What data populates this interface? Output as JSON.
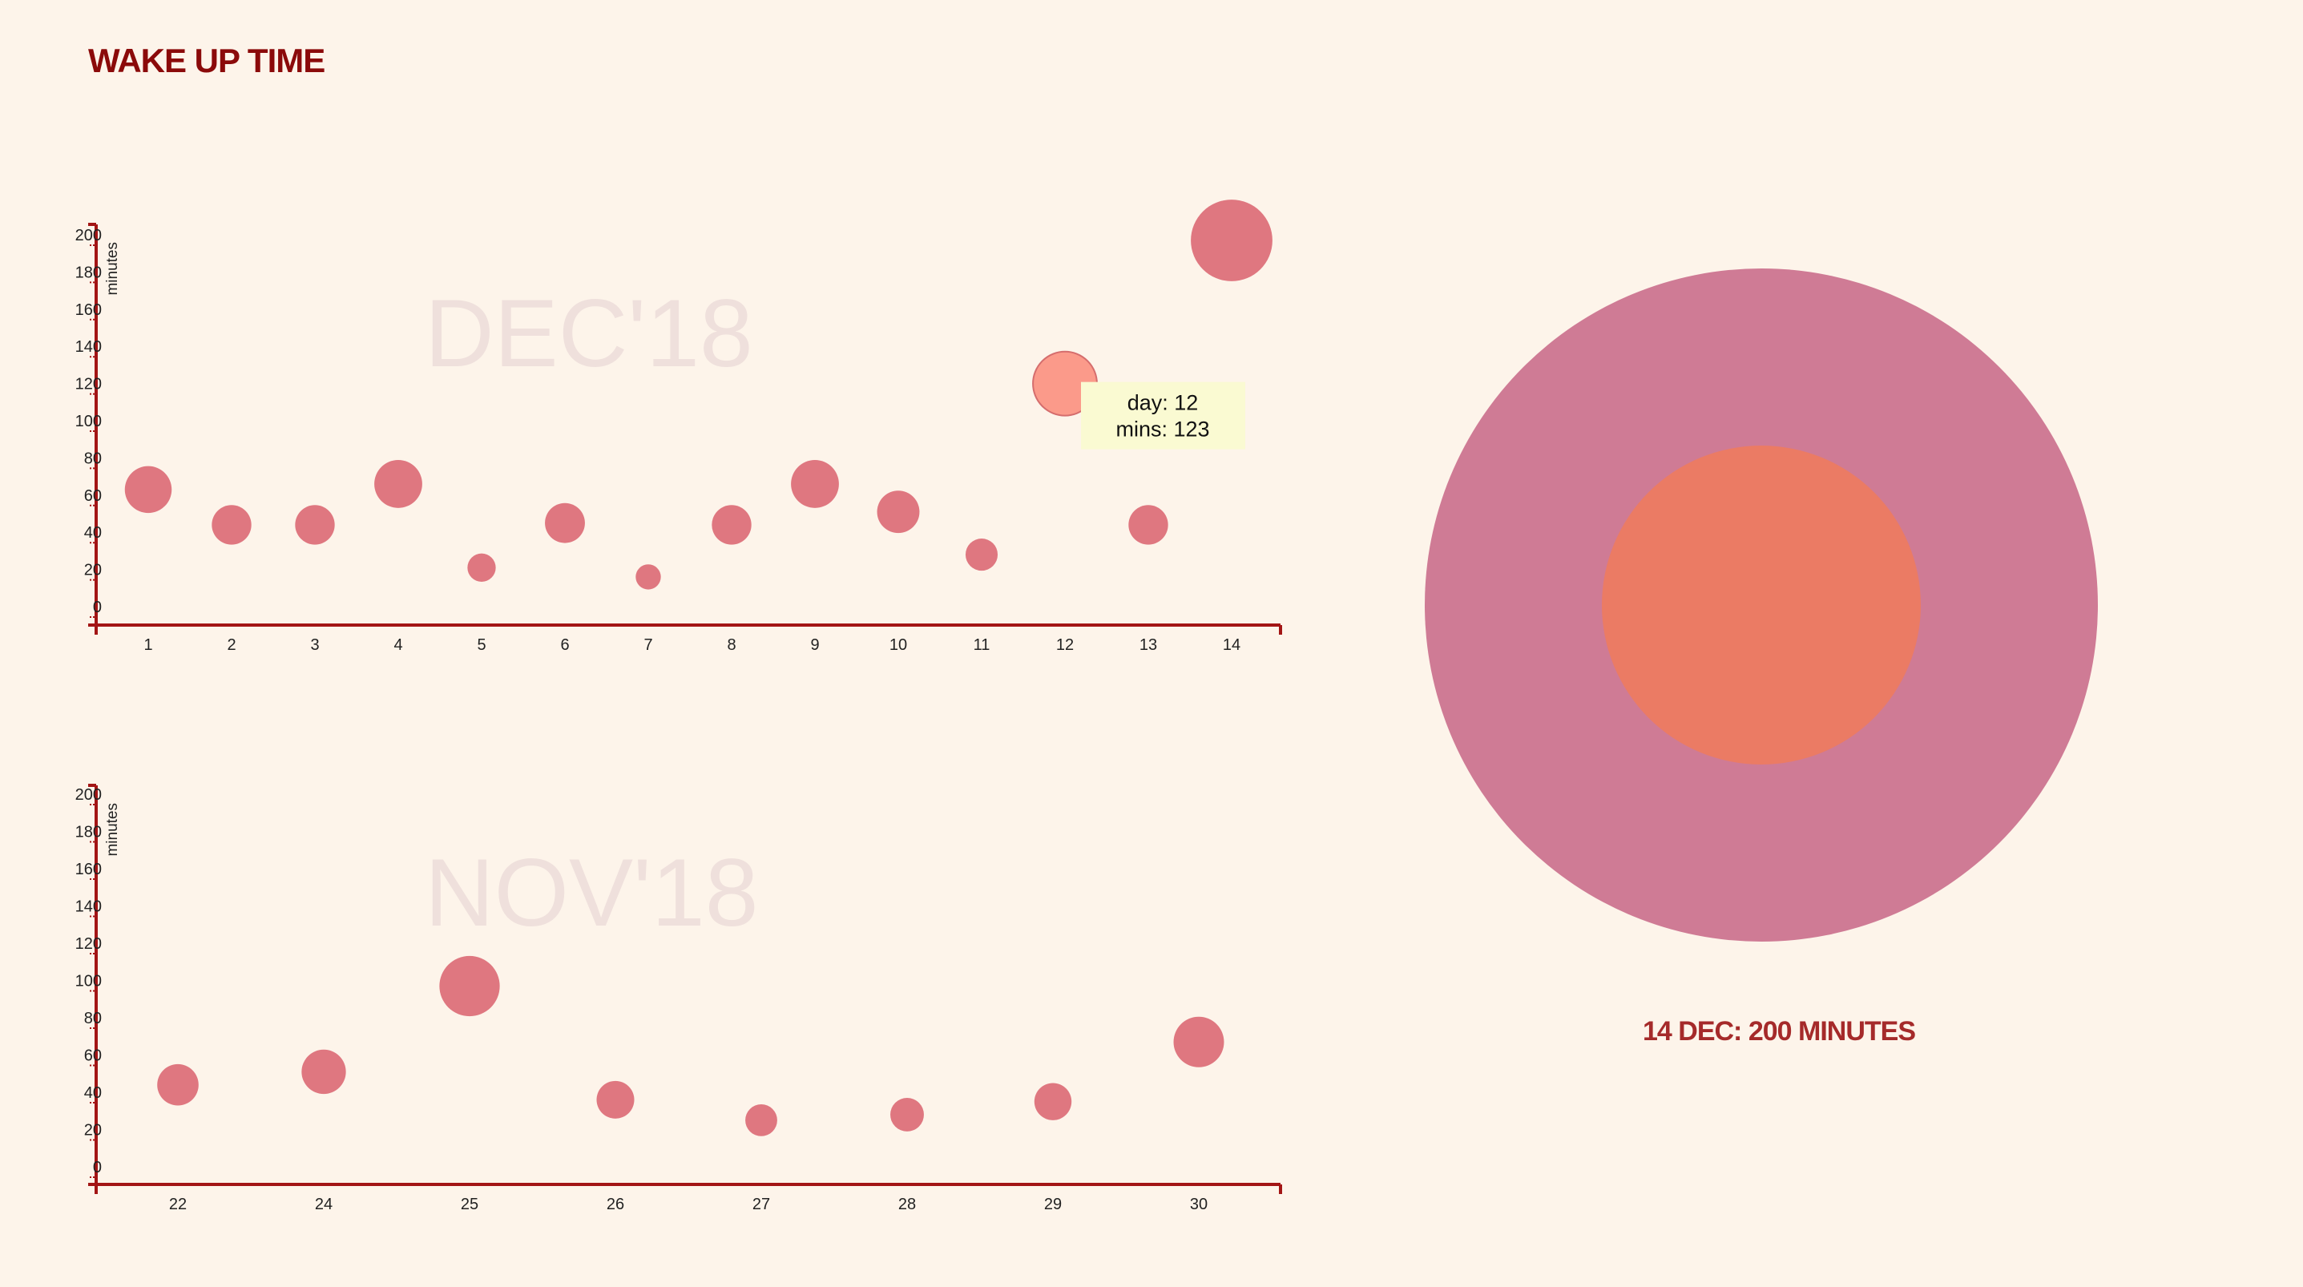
{
  "page": {
    "title": "WAKE UP TIME"
  },
  "colors": {
    "background": "#fdf4ea",
    "title": "#8b0a0a",
    "axis": "#a31515",
    "bubble": "#df7780",
    "bubble_highlight": "#fb9a8a",
    "watermark": "#efe0dc",
    "tooltip_bg": "#fafad2",
    "detail_outer": "#cf7b95",
    "detail_inner": "#eb7b64",
    "caption": "#a52a2a"
  },
  "tooltip": {
    "day_text": "day: 12",
    "mins_text": "mins: 123"
  },
  "detail": {
    "caption": "14 DEC: 200 MINUTES",
    "outer_value": 200,
    "inner_value": 95,
    "scale_max": 200
  },
  "chart_data": [
    {
      "type": "scatter",
      "title": "DEC'18",
      "xlabel": "",
      "ylabel": "minutes",
      "ylim": [
        0,
        200
      ],
      "yticks": [
        0,
        20,
        40,
        60,
        80,
        100,
        120,
        140,
        160,
        180,
        200
      ],
      "size_encodes": "minutes",
      "highlight_day": 12,
      "points": [
        {
          "x": "1",
          "y": 66
        },
        {
          "x": "2",
          "y": 47
        },
        {
          "x": "3",
          "y": 47
        },
        {
          "x": "4",
          "y": 69
        },
        {
          "x": "5",
          "y": 24
        },
        {
          "x": "6",
          "y": 48
        },
        {
          "x": "7",
          "y": 19
        },
        {
          "x": "8",
          "y": 47
        },
        {
          "x": "9",
          "y": 69
        },
        {
          "x": "10",
          "y": 54
        },
        {
          "x": "11",
          "y": 31
        },
        {
          "x": "12",
          "y": 123
        },
        {
          "x": "13",
          "y": 47
        },
        {
          "x": "14",
          "y": 200
        }
      ]
    },
    {
      "type": "scatter",
      "title": "NOV'18",
      "xlabel": "",
      "ylabel": "minutes",
      "ylim": [
        0,
        200
      ],
      "yticks": [
        0,
        20,
        40,
        60,
        80,
        100,
        120,
        140,
        160,
        180,
        200
      ],
      "size_encodes": "minutes",
      "points": [
        {
          "x": "22",
          "y": 47
        },
        {
          "x": "24",
          "y": 54
        },
        {
          "x": "25",
          "y": 100
        },
        {
          "x": "26",
          "y": 39
        },
        {
          "x": "27",
          "y": 28
        },
        {
          "x": "28",
          "y": 31
        },
        {
          "x": "29",
          "y": 38
        },
        {
          "x": "30",
          "y": 70
        }
      ]
    }
  ]
}
